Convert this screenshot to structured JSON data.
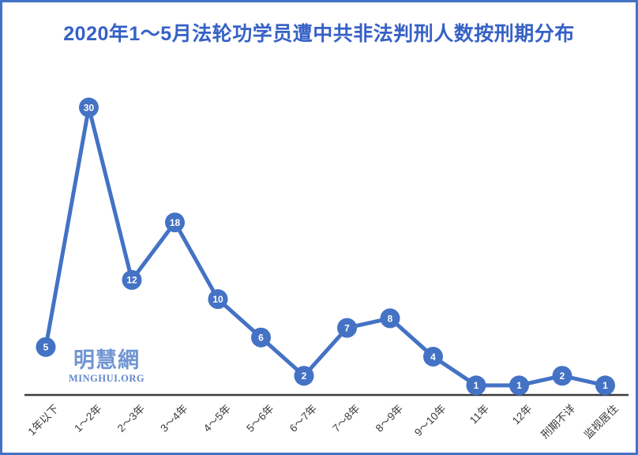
{
  "frame": {
    "border_color": "#4472C4",
    "background": "#ffffff"
  },
  "header": {
    "title": "2020年1～5月法轮功学员遭中共非法判刑人数按刑期分布",
    "title_color": "#3661C6"
  },
  "watermark": {
    "cn": "明慧網",
    "en": "MINGHUI.ORG",
    "color": "#7094D3"
  },
  "chart_data": {
    "type": "line",
    "title": "2020年1～5月法轮功学员遭中共非法判刑人数按刑期分布",
    "categories": [
      "1年以下",
      "1～2年",
      "2～3年",
      "3～4年",
      "4～5年",
      "5～6年",
      "6～7年",
      "7～8年",
      "8～9年",
      "9～10年",
      "11年",
      "12年",
      "刑期不详",
      "监视居住"
    ],
    "values": [
      5,
      30,
      12,
      18,
      10,
      6,
      2,
      7,
      8,
      4,
      1,
      1,
      2,
      1
    ],
    "xlabel": "",
    "ylabel": "",
    "ylim": [
      0,
      30
    ],
    "grid": false,
    "legend": "none",
    "data_labels": "inside-marker",
    "line_color": "#4472C4",
    "marker_color": "#4472C4",
    "marker_label_color": "#FFFFFF",
    "axis_color": "#3B3B3B",
    "tick_label_color": "#3A3A3A"
  }
}
